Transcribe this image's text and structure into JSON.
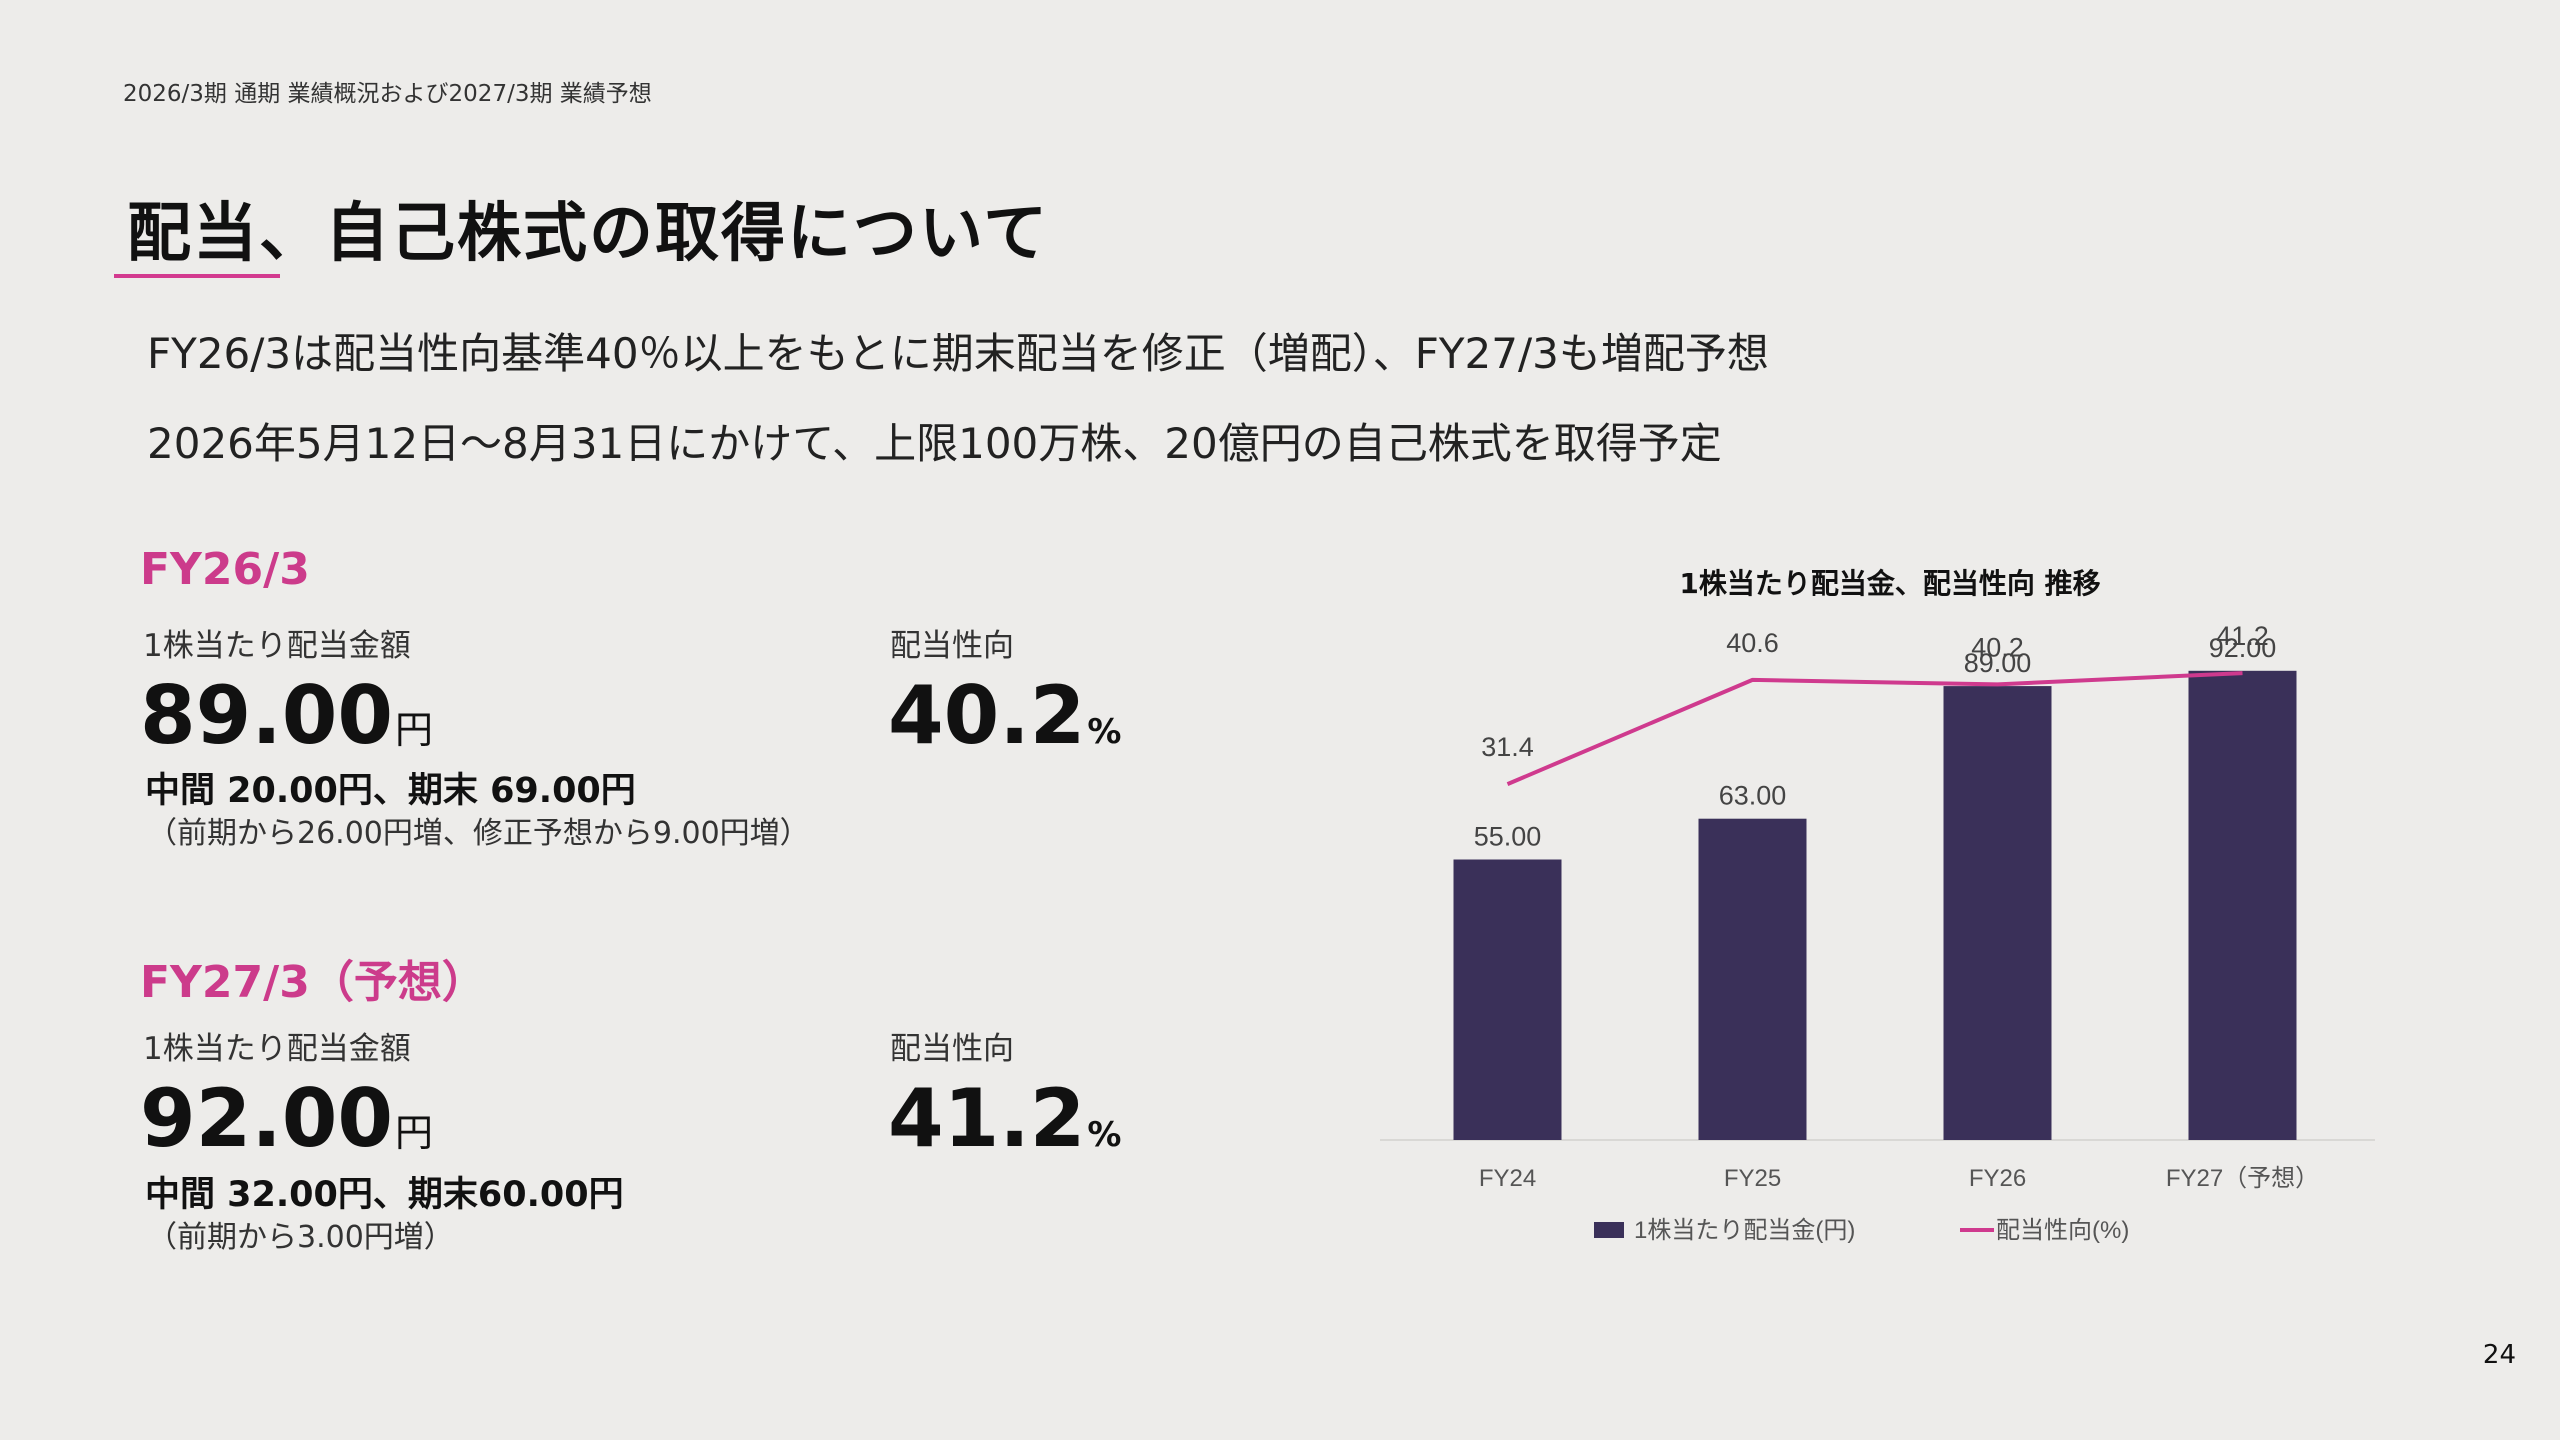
{
  "header": {
    "caption": "2026/3期 通期 業績概況および2027/3期 業績予想"
  },
  "title": "配当、自己株式の取得について",
  "lead": [
    "FY26/3は配当性向基準40％以上をもとに期末配当を修正（増配）、FY27/3も増配予想",
    "2026年5月12日～8月31日にかけて、上限100万株、20億円の自己株式を取得予定"
  ],
  "fy26": {
    "heading": "FY26/3",
    "dps_label": "1株当たり配当金額",
    "dps_value": "89.00",
    "dps_unit": "円",
    "payout_label": "配当性向",
    "payout_value": "40.2",
    "payout_unit": "%",
    "breakdown": "中間 20.00円、期末 69.00円",
    "delta": "（前期から26.00円増、修正予想から9.00円増）"
  },
  "fy27": {
    "heading": "FY27/3（予想）",
    "dps_label": "1株当たり配当金額",
    "dps_value": "92.00",
    "dps_unit": "円",
    "payout_label": "配当性向",
    "payout_value": "41.2",
    "payout_unit": "%",
    "breakdown": "中間 32.00円、期末60.00円",
    "delta": "（前期から3.00円増）"
  },
  "chart_data": {
    "type": "bar",
    "title": "1株当たり配当金、配当性向 推移",
    "categories": [
      "FY24",
      "FY25",
      "FY26",
      "FY27（予想）"
    ],
    "series": [
      {
        "name": "1株当たり配当金(円)",
        "type": "bar",
        "values": [
          55.0,
          63.0,
          89.0,
          92.0
        ],
        "labels": [
          "55.00",
          "63.00",
          "89.00",
          "92.00"
        ],
        "color": "#3a3059"
      },
      {
        "name": "配当性向(%)",
        "type": "line",
        "values": [
          31.4,
          40.6,
          40.2,
          41.2
        ],
        "labels": [
          "31.4",
          "40.6",
          "40.2",
          "41.2"
        ],
        "color": "#cf3a8e"
      }
    ],
    "bar_axis_range": [
      0,
      100
    ],
    "line_axis_range": [
      0,
      45
    ],
    "grid": false,
    "legend_position": "bottom"
  },
  "page_number": "24"
}
